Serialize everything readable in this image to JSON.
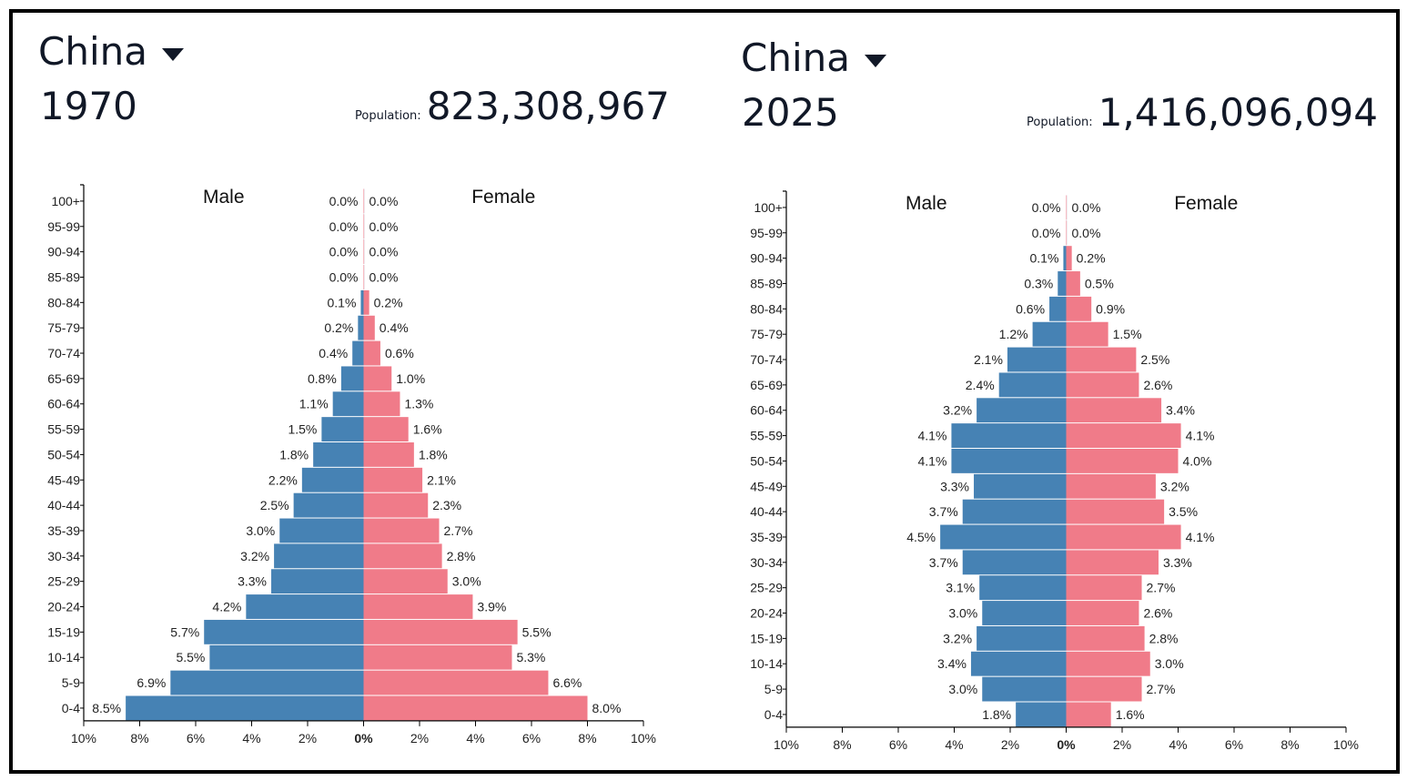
{
  "colors": {
    "male": "#4682b4",
    "female": "#f07b89",
    "text": "#111827",
    "axis": "#000000"
  },
  "panels": [
    {
      "country": "China",
      "year": "1970",
      "population_label": "Population:",
      "population": "823,308,967"
    },
    {
      "country": "China",
      "year": "2025",
      "population_label": "Population:",
      "population": "1,416,096,094"
    }
  ],
  "chart_data": [
    {
      "type": "bar",
      "title": "China 1970",
      "series_labels": [
        "Male",
        "Female"
      ],
      "xlim": [
        -10,
        10
      ],
      "x_ticks": [
        "10%",
        "8%",
        "6%",
        "4%",
        "2%",
        "0%",
        "2%",
        "4%",
        "6%",
        "8%",
        "10%"
      ],
      "categories": [
        "100+",
        "95-99",
        "90-94",
        "85-89",
        "80-84",
        "75-79",
        "70-74",
        "65-69",
        "60-64",
        "55-59",
        "50-54",
        "45-49",
        "40-44",
        "35-39",
        "30-34",
        "25-29",
        "20-24",
        "15-19",
        "10-14",
        "5-9",
        "0-4"
      ],
      "series": [
        {
          "name": "Male",
          "values": [
            0.0,
            0.0,
            0.0,
            0.0,
            0.1,
            0.2,
            0.4,
            0.8,
            1.1,
            1.5,
            1.8,
            2.2,
            2.5,
            3.0,
            3.2,
            3.3,
            4.2,
            5.7,
            5.5,
            6.9,
            8.5
          ]
        },
        {
          "name": "Female",
          "values": [
            0.0,
            0.0,
            0.0,
            0.0,
            0.2,
            0.4,
            0.6,
            1.0,
            1.3,
            1.6,
            1.8,
            2.1,
            2.3,
            2.7,
            2.8,
            3.0,
            3.9,
            5.5,
            5.3,
            6.6,
            8.0
          ]
        }
      ]
    },
    {
      "type": "bar",
      "title": "China 2025",
      "series_labels": [
        "Male",
        "Female"
      ],
      "xlim": [
        -10,
        10
      ],
      "x_ticks": [
        "10%",
        "8%",
        "6%",
        "4%",
        "2%",
        "0%",
        "2%",
        "4%",
        "6%",
        "8%",
        "10%"
      ],
      "categories": [
        "100+",
        "95-99",
        "90-94",
        "85-89",
        "80-84",
        "75-79",
        "70-74",
        "65-69",
        "60-64",
        "55-59",
        "50-54",
        "45-49",
        "40-44",
        "35-39",
        "30-34",
        "25-29",
        "20-24",
        "15-19",
        "10-14",
        "5-9",
        "0-4"
      ],
      "series": [
        {
          "name": "Male",
          "values": [
            0.0,
            0.0,
            0.1,
            0.3,
            0.6,
            1.2,
            2.1,
            2.4,
            3.2,
            4.1,
            4.1,
            3.3,
            3.7,
            4.5,
            3.7,
            3.1,
            3.0,
            3.2,
            3.4,
            3.0,
            1.8
          ]
        },
        {
          "name": "Female",
          "values": [
            0.0,
            0.0,
            0.2,
            0.5,
            0.9,
            1.5,
            2.5,
            2.6,
            3.4,
            4.1,
            4.0,
            3.2,
            3.5,
            4.1,
            3.3,
            2.7,
            2.6,
            2.8,
            3.0,
            2.7,
            1.6
          ]
        }
      ]
    }
  ]
}
